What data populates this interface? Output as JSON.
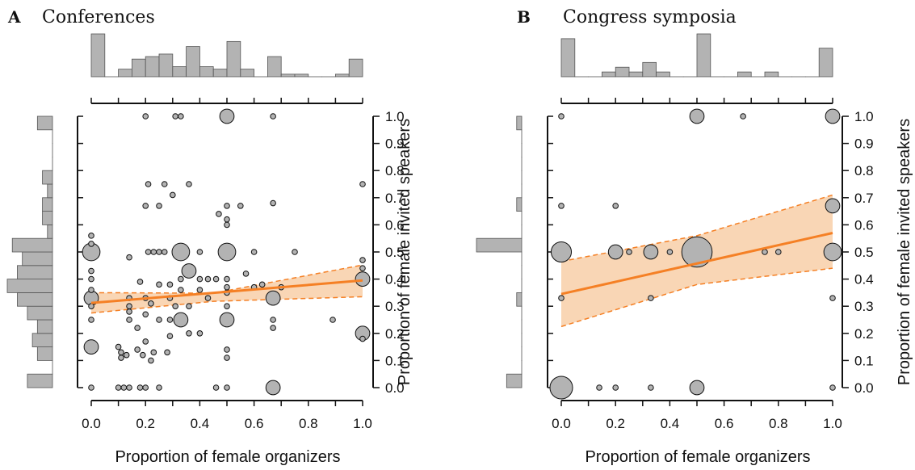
{
  "chart_data": [
    {
      "type": "scatter",
      "panel_letter": "A",
      "title": "Conferences",
      "xlabel": "Proportion of female organizers",
      "ylabel": "Proportion of female invited speakers",
      "xlim": [
        0,
        1
      ],
      "ylim": [
        0,
        1
      ],
      "x_ticks": [
        "0.0",
        "0.2",
        "0.4",
        "0.6",
        "0.8",
        "1.0"
      ],
      "y_ticks": [
        "0.0",
        "0.1",
        "0.2",
        "0.3",
        "0.4",
        "0.5",
        "0.6",
        "0.7",
        "0.8",
        "0.9",
        "1.0"
      ],
      "y_axis_side": "right",
      "grid": false,
      "point_color": "#b3b3b3",
      "fit_color": "#f58025",
      "ci_fill": "#f8cfa8",
      "hist_color": "#b3b3b3",
      "fit_line": {
        "x": [
          0,
          1
        ],
        "y": [
          0.312,
          0.395
        ]
      },
      "ci_band": {
        "x": [
          0,
          0.45,
          1
        ],
        "lower": [
          0.275,
          0.318,
          0.335
        ],
        "upper": [
          0.35,
          0.348,
          0.452
        ]
      },
      "points": [
        {
          "x": 0,
          "y": 0.5,
          "n": 3
        },
        {
          "x": 0,
          "y": 0.33,
          "n": 2
        },
        {
          "x": 0,
          "y": 0.15,
          "n": 2
        },
        {
          "x": 0,
          "y": 0.0,
          "n": 1
        },
        {
          "x": 0,
          "y": 0.56,
          "n": 1
        },
        {
          "x": 0,
          "y": 0.53,
          "n": 1
        },
        {
          "x": 0,
          "y": 0.43,
          "n": 1
        },
        {
          "x": 0,
          "y": 0.4,
          "n": 1
        },
        {
          "x": 0,
          "y": 0.36,
          "n": 1
        },
        {
          "x": 0,
          "y": 0.3,
          "n": 1
        },
        {
          "x": 0,
          "y": 0.25,
          "n": 1
        },
        {
          "x": 0.2,
          "y": 1.0,
          "n": 1
        },
        {
          "x": 0.31,
          "y": 1.0,
          "n": 1
        },
        {
          "x": 0.33,
          "y": 1.0,
          "n": 1
        },
        {
          "x": 0.5,
          "y": 1.0,
          "n": 2
        },
        {
          "x": 0.67,
          "y": 1.0,
          "n": 1
        },
        {
          "x": 0.21,
          "y": 0.75,
          "n": 1
        },
        {
          "x": 0.27,
          "y": 0.75,
          "n": 1
        },
        {
          "x": 0.36,
          "y": 0.75,
          "n": 1
        },
        {
          "x": 1.0,
          "y": 0.75,
          "n": 1
        },
        {
          "x": 0.3,
          "y": 0.71,
          "n": 1
        },
        {
          "x": 0.2,
          "y": 0.67,
          "n": 1
        },
        {
          "x": 0.25,
          "y": 0.67,
          "n": 1
        },
        {
          "x": 0.5,
          "y": 0.67,
          "n": 1
        },
        {
          "x": 0.55,
          "y": 0.67,
          "n": 1
        },
        {
          "x": 0.67,
          "y": 0.68,
          "n": 1
        },
        {
          "x": 0.47,
          "y": 0.64,
          "n": 1
        },
        {
          "x": 0.5,
          "y": 0.62,
          "n": 1
        },
        {
          "x": 0.5,
          "y": 0.6,
          "n": 1
        },
        {
          "x": 0.33,
          "y": 0.5,
          "n": 3
        },
        {
          "x": 0.5,
          "y": 0.5,
          "n": 3
        },
        {
          "x": 0.21,
          "y": 0.5,
          "n": 1
        },
        {
          "x": 0.23,
          "y": 0.5,
          "n": 1
        },
        {
          "x": 0.25,
          "y": 0.5,
          "n": 1
        },
        {
          "x": 0.27,
          "y": 0.5,
          "n": 1
        },
        {
          "x": 0.4,
          "y": 0.5,
          "n": 1
        },
        {
          "x": 0.14,
          "y": 0.48,
          "n": 1
        },
        {
          "x": 0.6,
          "y": 0.5,
          "n": 1
        },
        {
          "x": 0.75,
          "y": 0.5,
          "n": 1
        },
        {
          "x": 1.0,
          "y": 0.47,
          "n": 1
        },
        {
          "x": 0.36,
          "y": 0.43,
          "n": 2
        },
        {
          "x": 1.0,
          "y": 0.44,
          "n": 1
        },
        {
          "x": 0.57,
          "y": 0.42,
          "n": 1
        },
        {
          "x": 0.33,
          "y": 0.4,
          "n": 1
        },
        {
          "x": 0.4,
          "y": 0.4,
          "n": 1
        },
        {
          "x": 0.43,
          "y": 0.4,
          "n": 1
        },
        {
          "x": 0.46,
          "y": 0.4,
          "n": 1
        },
        {
          "x": 0.5,
          "y": 0.4,
          "n": 1
        },
        {
          "x": 1.0,
          "y": 0.4,
          "n": 2
        },
        {
          "x": 0.18,
          "y": 0.39,
          "n": 1
        },
        {
          "x": 0.25,
          "y": 0.38,
          "n": 1
        },
        {
          "x": 0.29,
          "y": 0.38,
          "n": 1
        },
        {
          "x": 0.63,
          "y": 0.38,
          "n": 1
        },
        {
          "x": 0.5,
          "y": 0.37,
          "n": 1
        },
        {
          "x": 0.6,
          "y": 0.37,
          "n": 1
        },
        {
          "x": 0.7,
          "y": 0.37,
          "n": 1
        },
        {
          "x": 0.33,
          "y": 0.36,
          "n": 1
        },
        {
          "x": 0.4,
          "y": 0.36,
          "n": 1
        },
        {
          "x": 0.5,
          "y": 0.35,
          "n": 1
        },
        {
          "x": 0.67,
          "y": 0.33,
          "n": 2
        },
        {
          "x": 0.14,
          "y": 0.33,
          "n": 1
        },
        {
          "x": 0.2,
          "y": 0.33,
          "n": 1
        },
        {
          "x": 0.29,
          "y": 0.33,
          "n": 1
        },
        {
          "x": 0.43,
          "y": 0.33,
          "n": 1
        },
        {
          "x": 0.22,
          "y": 0.31,
          "n": 1
        },
        {
          "x": 0.14,
          "y": 0.3,
          "n": 1
        },
        {
          "x": 0.31,
          "y": 0.3,
          "n": 1
        },
        {
          "x": 0.36,
          "y": 0.3,
          "n": 1
        },
        {
          "x": 0.5,
          "y": 0.3,
          "n": 1
        },
        {
          "x": 0.14,
          "y": 0.28,
          "n": 1
        },
        {
          "x": 0.2,
          "y": 0.27,
          "n": 1
        },
        {
          "x": 0.33,
          "y": 0.25,
          "n": 2
        },
        {
          "x": 0.5,
          "y": 0.25,
          "n": 2
        },
        {
          "x": 0.14,
          "y": 0.25,
          "n": 1
        },
        {
          "x": 0.25,
          "y": 0.25,
          "n": 1
        },
        {
          "x": 0.29,
          "y": 0.25,
          "n": 1
        },
        {
          "x": 0.67,
          "y": 0.25,
          "n": 1
        },
        {
          "x": 0.89,
          "y": 0.25,
          "n": 1
        },
        {
          "x": 0.67,
          "y": 0.22,
          "n": 1
        },
        {
          "x": 0.17,
          "y": 0.22,
          "n": 1
        },
        {
          "x": 0.36,
          "y": 0.2,
          "n": 1
        },
        {
          "x": 0.4,
          "y": 0.2,
          "n": 1
        },
        {
          "x": 1.0,
          "y": 0.2,
          "n": 2
        },
        {
          "x": 1.0,
          "y": 0.18,
          "n": 1
        },
        {
          "x": 0.29,
          "y": 0.19,
          "n": 1
        },
        {
          "x": 0.2,
          "y": 0.17,
          "n": 1
        },
        {
          "x": 0.1,
          "y": 0.15,
          "n": 1
        },
        {
          "x": 0.17,
          "y": 0.14,
          "n": 1
        },
        {
          "x": 0.5,
          "y": 0.14,
          "n": 1
        },
        {
          "x": 0.11,
          "y": 0.13,
          "n": 1
        },
        {
          "x": 0.13,
          "y": 0.12,
          "n": 1
        },
        {
          "x": 0.19,
          "y": 0.12,
          "n": 1
        },
        {
          "x": 0.23,
          "y": 0.13,
          "n": 1
        },
        {
          "x": 0.28,
          "y": 0.13,
          "n": 1
        },
        {
          "x": 0.11,
          "y": 0.11,
          "n": 1
        },
        {
          "x": 0.22,
          "y": 0.1,
          "n": 1
        },
        {
          "x": 0.5,
          "y": 0.11,
          "n": 1
        },
        {
          "x": 0.1,
          "y": 0.0,
          "n": 1
        },
        {
          "x": 0.12,
          "y": 0.0,
          "n": 1
        },
        {
          "x": 0.14,
          "y": 0.0,
          "n": 1
        },
        {
          "x": 0.18,
          "y": 0.0,
          "n": 1
        },
        {
          "x": 0.2,
          "y": 0.0,
          "n": 1
        },
        {
          "x": 0.25,
          "y": 0.0,
          "n": 1
        },
        {
          "x": 0.46,
          "y": 0.0,
          "n": 1
        },
        {
          "x": 0.5,
          "y": 0.0,
          "n": 1
        },
        {
          "x": 0.67,
          "y": 0.0,
          "n": 2
        }
      ],
      "x_hist": {
        "bin_width": 0.05,
        "counts": [
          17,
          0,
          3,
          7,
          8,
          9,
          4,
          12,
          4,
          3,
          14,
          3,
          0,
          8,
          1,
          1,
          0,
          0,
          1,
          7
        ]
      },
      "y_hist": {
        "bin_width": 0.05,
        "counts": [
          5,
          0,
          3,
          4,
          3,
          5,
          7,
          9,
          7,
          6,
          8,
          1,
          2,
          2,
          1,
          2,
          0,
          0,
          0,
          3
        ]
      }
    },
    {
      "type": "scatter",
      "panel_letter": "B",
      "title": "Congress symposia",
      "xlabel": "Proportion of female organizers",
      "ylabel": "Proportion of female invited speakers",
      "xlim": [
        0,
        1
      ],
      "ylim": [
        0,
        1
      ],
      "x_ticks": [
        "0.0",
        "0.2",
        "0.4",
        "0.6",
        "0.8",
        "1.0"
      ],
      "y_ticks": [
        "0.0",
        "0.1",
        "0.2",
        "0.3",
        "0.4",
        "0.5",
        "0.6",
        "0.7",
        "0.8",
        "0.9",
        "1.0"
      ],
      "y_axis_side": "right",
      "grid": false,
      "point_color": "#b3b3b3",
      "fit_color": "#f58025",
      "ci_fill": "#f8cfa8",
      "hist_color": "#b3b3b3",
      "fit_line": {
        "x": [
          0,
          1
        ],
        "y": [
          0.345,
          0.57
        ]
      },
      "ci_band": {
        "x": [
          0,
          0.5,
          1
        ],
        "lower": [
          0.225,
          0.38,
          0.44
        ],
        "upper": [
          0.465,
          0.56,
          0.71
        ]
      },
      "points": [
        {
          "x": 0,
          "y": 0.0,
          "n": 5
        },
        {
          "x": 0,
          "y": 0.5,
          "n": 4
        },
        {
          "x": 0,
          "y": 0.33,
          "n": 1
        },
        {
          "x": 0,
          "y": 0.67,
          "n": 1
        },
        {
          "x": 0,
          "y": 1.0,
          "n": 1
        },
        {
          "x": 0.14,
          "y": 0.0,
          "n": 1
        },
        {
          "x": 0.2,
          "y": 0.0,
          "n": 1
        },
        {
          "x": 0.33,
          "y": 0.0,
          "n": 1
        },
        {
          "x": 0.5,
          "y": 0.0,
          "n": 2
        },
        {
          "x": 1.0,
          "y": 0.0,
          "n": 1
        },
        {
          "x": 0.2,
          "y": 0.5,
          "n": 2
        },
        {
          "x": 0.25,
          "y": 0.5,
          "n": 1
        },
        {
          "x": 0.33,
          "y": 0.5,
          "n": 2
        },
        {
          "x": 0.4,
          "y": 0.5,
          "n": 1
        },
        {
          "x": 0.5,
          "y": 0.5,
          "n": 9
        },
        {
          "x": 0.75,
          "y": 0.5,
          "n": 1
        },
        {
          "x": 0.8,
          "y": 0.5,
          "n": 1
        },
        {
          "x": 1.0,
          "y": 0.5,
          "n": 3
        },
        {
          "x": 0.2,
          "y": 0.67,
          "n": 1
        },
        {
          "x": 0.33,
          "y": 0.33,
          "n": 1
        },
        {
          "x": 1.0,
          "y": 0.67,
          "n": 2
        },
        {
          "x": 1.0,
          "y": 0.33,
          "n": 1
        },
        {
          "x": 0.5,
          "y": 1.0,
          "n": 2
        },
        {
          "x": 0.67,
          "y": 1.0,
          "n": 1
        },
        {
          "x": 1.0,
          "y": 1.0,
          "n": 2
        }
      ],
      "x_hist": {
        "bin_width": 0.05,
        "counts": [
          8,
          0,
          0,
          1,
          2,
          1,
          3,
          1,
          0,
          0,
          9,
          0,
          0,
          1,
          0,
          1,
          0,
          0,
          0,
          6
        ]
      },
      "y_hist": {
        "bin_width": 0.05,
        "counts": [
          3,
          0,
          0,
          0,
          0,
          0,
          1,
          0,
          0,
          0,
          9,
          0,
          0,
          1,
          0,
          0,
          0,
          0,
          0,
          1
        ]
      }
    }
  ]
}
